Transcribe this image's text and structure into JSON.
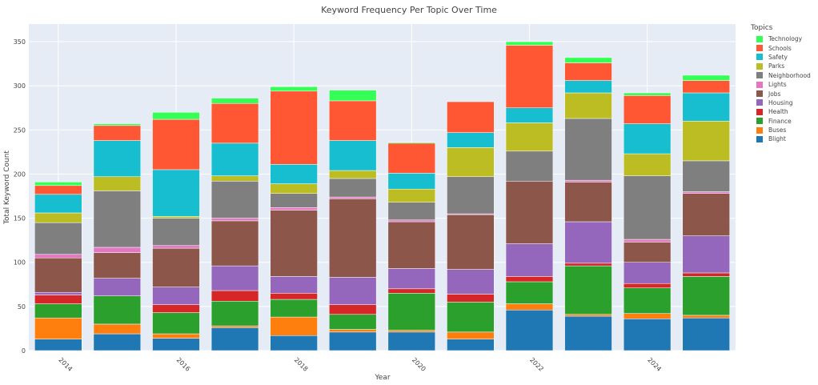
{
  "chart_data": {
    "type": "bar",
    "stacked": true,
    "title": "Keyword Frequency Per Topic Over Time",
    "xlabel": "Year",
    "ylabel": "Total Keyword Count",
    "ylim": [
      0,
      370
    ],
    "yticks": [
      0,
      50,
      100,
      150,
      200,
      250,
      300,
      350
    ],
    "xticks": [
      2014,
      2016,
      2018,
      2020,
      2022,
      2024
    ],
    "grid": true,
    "legend_title": "Topics",
    "legend_position": "right",
    "categories": [
      2014,
      2015,
      2016,
      2017,
      2018,
      2019,
      2020,
      2021,
      2022,
      2023,
      2024,
      2025
    ],
    "series": [
      {
        "name": "Blight",
        "color": "#1f77b4",
        "values": [
          13,
          19,
          14,
          26,
          17,
          21,
          21,
          13,
          46,
          39,
          36,
          37
        ]
      },
      {
        "name": "Buses",
        "color": "#ff7f0e",
        "values": [
          24,
          11,
          5,
          2,
          21,
          3,
          2,
          8,
          7,
          2,
          6,
          3
        ]
      },
      {
        "name": "Finance",
        "color": "#2ca02c",
        "values": [
          16,
          32,
          24,
          28,
          20,
          17,
          42,
          34,
          25,
          55,
          29,
          44
        ]
      },
      {
        "name": "Health",
        "color": "#d62728",
        "values": [
          10,
          0,
          9,
          12,
          7,
          11,
          5,
          9,
          6,
          3,
          5,
          4
        ]
      },
      {
        "name": "Housing",
        "color": "#9467bd",
        "values": [
          3,
          20,
          20,
          28,
          19,
          31,
          23,
          28,
          37,
          47,
          24,
          42
        ]
      },
      {
        "name": "Jobs",
        "color": "#8c564b",
        "values": [
          39,
          29,
          44,
          51,
          75,
          89,
          53,
          62,
          71,
          45,
          23,
          48
        ]
      },
      {
        "name": "Lights",
        "color": "#e377c2",
        "values": [
          4,
          6,
          3,
          3,
          3,
          2,
          2,
          1,
          0,
          2,
          3,
          2
        ]
      },
      {
        "name": "Neighborhood",
        "color": "#7f7f7f",
        "values": [
          36,
          64,
          31,
          42,
          16,
          21,
          20,
          42,
          34,
          70,
          72,
          35
        ]
      },
      {
        "name": "Parks",
        "color": "#bcbd22",
        "values": [
          11,
          16,
          2,
          6,
          11,
          9,
          15,
          33,
          32,
          29,
          25,
          45
        ]
      },
      {
        "name": "Safety",
        "color": "#17becf",
        "values": [
          21,
          41,
          53,
          37,
          22,
          34,
          18,
          17,
          17,
          14,
          34,
          32
        ]
      },
      {
        "name": "Schools",
        "color": "#ff5733",
        "values": [
          10,
          17,
          57,
          45,
          83,
          45,
          34,
          35,
          71,
          20,
          32,
          14
        ]
      },
      {
        "name": "Technology",
        "color": "#33ff57",
        "values": [
          4,
          2,
          8,
          6,
          5,
          12,
          1,
          0,
          4,
          6,
          3,
          6
        ]
      }
    ]
  }
}
